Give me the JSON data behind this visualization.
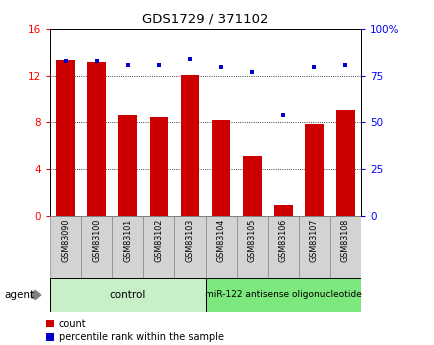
{
  "title": "GDS1729 / 371102",
  "categories": [
    "GSM83090",
    "GSM83100",
    "GSM83101",
    "GSM83102",
    "GSM83103",
    "GSM83104",
    "GSM83105",
    "GSM83106",
    "GSM83107",
    "GSM83108"
  ],
  "counts": [
    13.4,
    13.2,
    8.6,
    8.5,
    12.1,
    8.2,
    5.1,
    0.9,
    7.9,
    9.1
  ],
  "percentiles": [
    83,
    83,
    81,
    81,
    84,
    80,
    77,
    54,
    80,
    81
  ],
  "bar_color": "#cc0000",
  "dot_color": "#0000cc",
  "ylim_left": [
    0,
    16
  ],
  "ylim_right": [
    0,
    100
  ],
  "yticks_left": [
    0,
    4,
    8,
    12,
    16
  ],
  "yticks_right": [
    0,
    25,
    50,
    75,
    100
  ],
  "yticklabels_right": [
    "0",
    "25",
    "50",
    "75",
    "100%"
  ],
  "bg_plot": "#ffffff",
  "bg_xtick_area": "#d3d3d3",
  "control_label": "control",
  "treatment_label": "miR-122 antisense oligonucleotide",
  "control_color": "#c8f0c8",
  "treatment_color": "#7de87d",
  "agent_label": "agent",
  "legend_count": "count",
  "legend_percentile": "percentile rank within the sample",
  "n_control": 5,
  "n_treatment": 5
}
